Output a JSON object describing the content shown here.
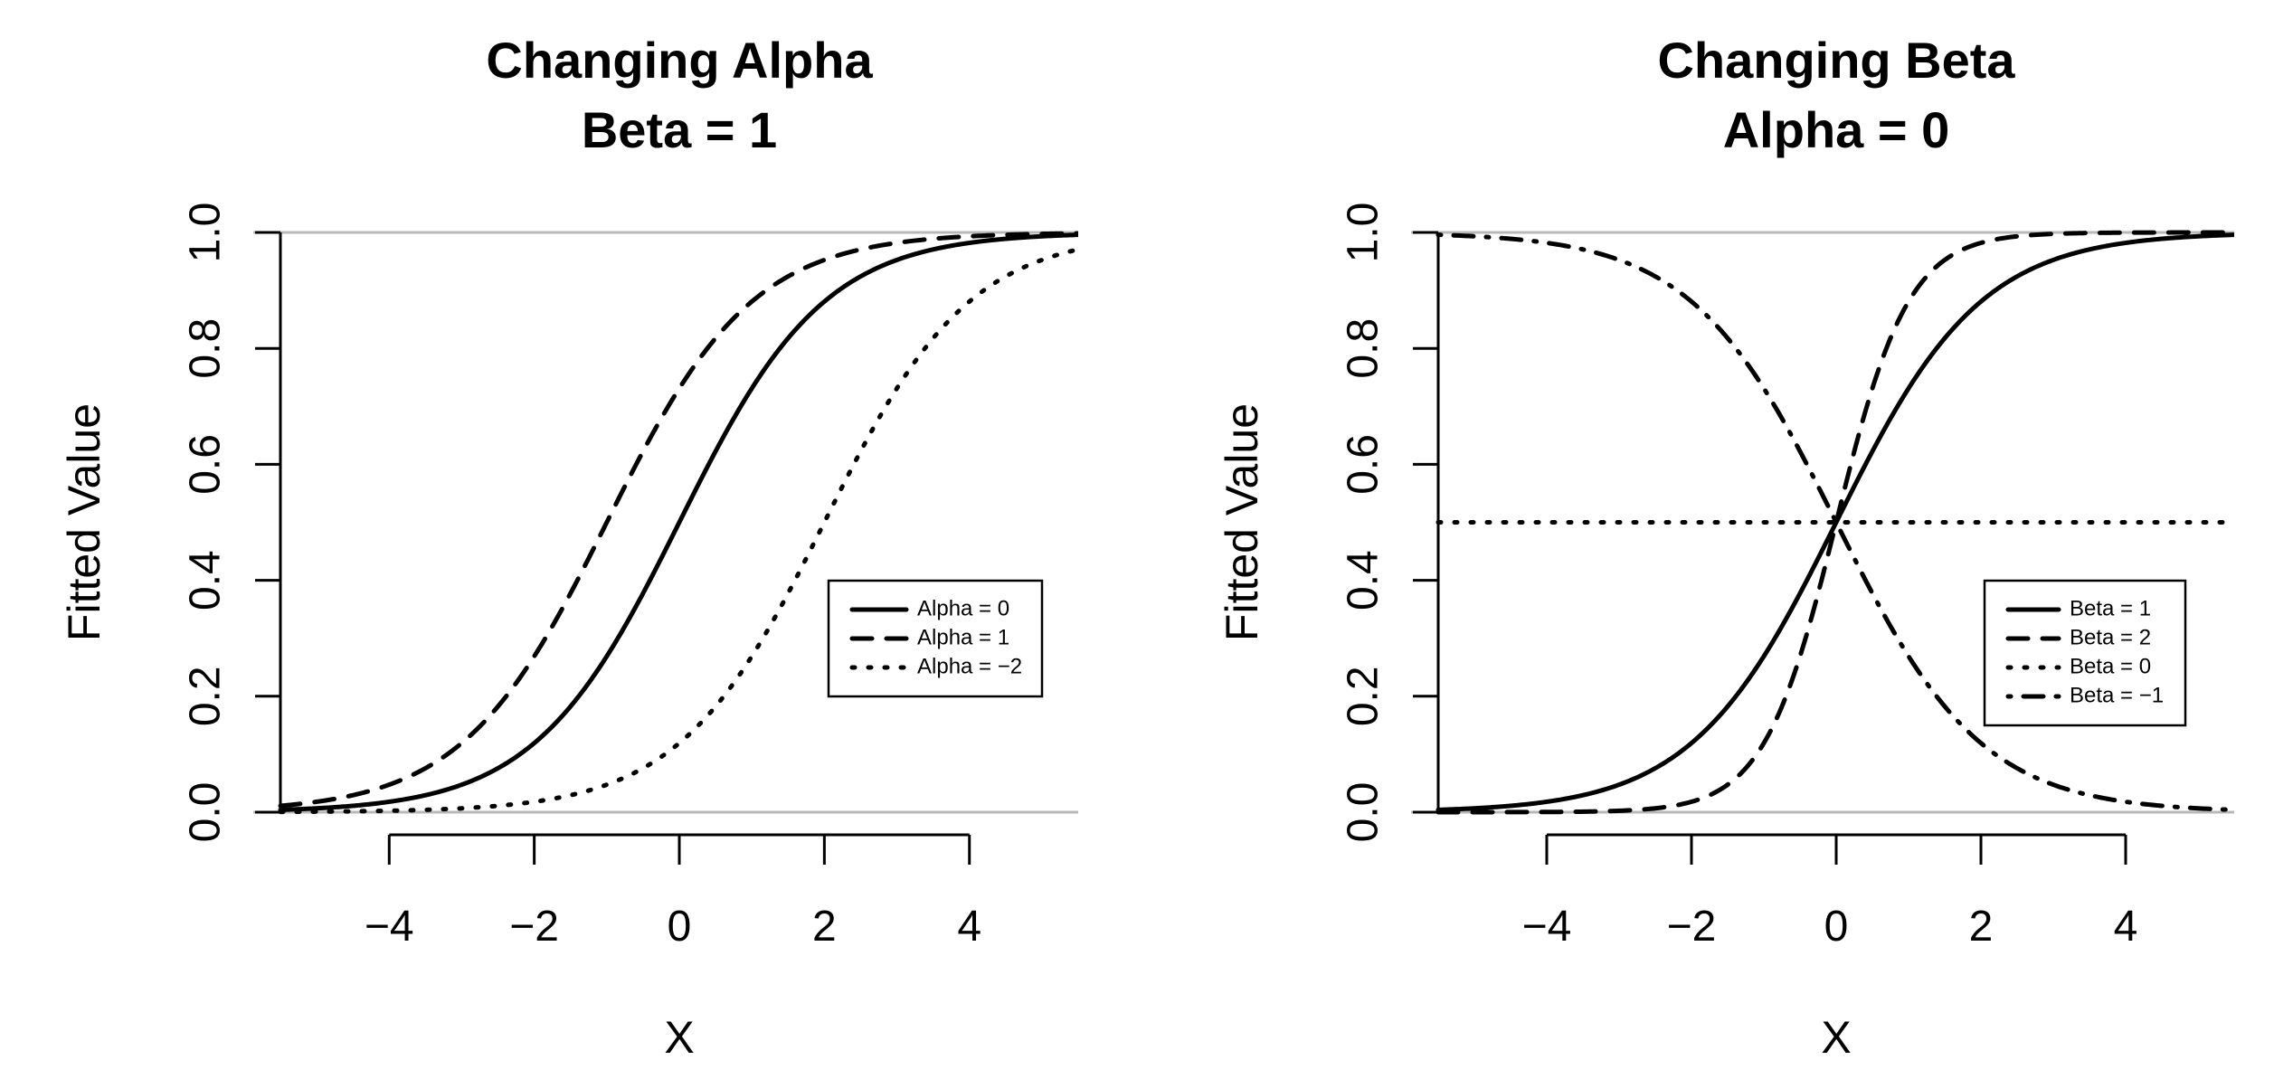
{
  "chart_data": [
    {
      "type": "line",
      "title": "Changing Alpha",
      "subtitle": "Beta = 1",
      "xlabel": "X",
      "ylabel": "Fitted Value",
      "xlim": [
        -5.5,
        5.5
      ],
      "ylim": [
        0,
        1
      ],
      "xticks": [
        "−4",
        "−2",
        "0",
        "2",
        "4"
      ],
      "xtick_values": [
        -4,
        -2,
        0,
        2,
        4
      ],
      "yticks": [
        "0.0",
        "0.2",
        "0.4",
        "0.6",
        "0.8",
        "1.0"
      ],
      "ytick_values": [
        0,
        0.2,
        0.4,
        0.6,
        0.8,
        1.0
      ],
      "reference_lines": [
        0,
        1
      ],
      "legend_position": "right",
      "series": [
        {
          "name": "Alpha = 0",
          "alpha": 0,
          "beta": 1,
          "style": "solid"
        },
        {
          "name": "Alpha = 1",
          "alpha": 1,
          "beta": 1,
          "style": "dashed"
        },
        {
          "name": "Alpha = −2",
          "alpha": -2,
          "beta": 1,
          "style": "dotted"
        }
      ]
    },
    {
      "type": "line",
      "title": "Changing Beta",
      "subtitle": "Alpha = 0",
      "xlabel": "X",
      "ylabel": "Fitted Value",
      "xlim": [
        -5.5,
        5.5
      ],
      "ylim": [
        0,
        1
      ],
      "xticks": [
        "−4",
        "−2",
        "0",
        "2",
        "4"
      ],
      "xtick_values": [
        -4,
        -2,
        0,
        2,
        4
      ],
      "yticks": [
        "0.0",
        "0.2",
        "0.4",
        "0.6",
        "0.8",
        "1.0"
      ],
      "ytick_values": [
        0,
        0.2,
        0.4,
        0.6,
        0.8,
        1.0
      ],
      "reference_lines": [
        0,
        1
      ],
      "legend_position": "bottom-right",
      "series": [
        {
          "name": "Beta = 1",
          "alpha": 0,
          "beta": 1,
          "style": "solid"
        },
        {
          "name": "Beta = 2",
          "alpha": 0,
          "beta": 2,
          "style": "dashed"
        },
        {
          "name": "Beta = 0",
          "alpha": 0,
          "beta": 0,
          "style": "dotted"
        },
        {
          "name": "Beta = −1",
          "alpha": 0,
          "beta": -1,
          "style": "dotdash"
        }
      ]
    }
  ]
}
